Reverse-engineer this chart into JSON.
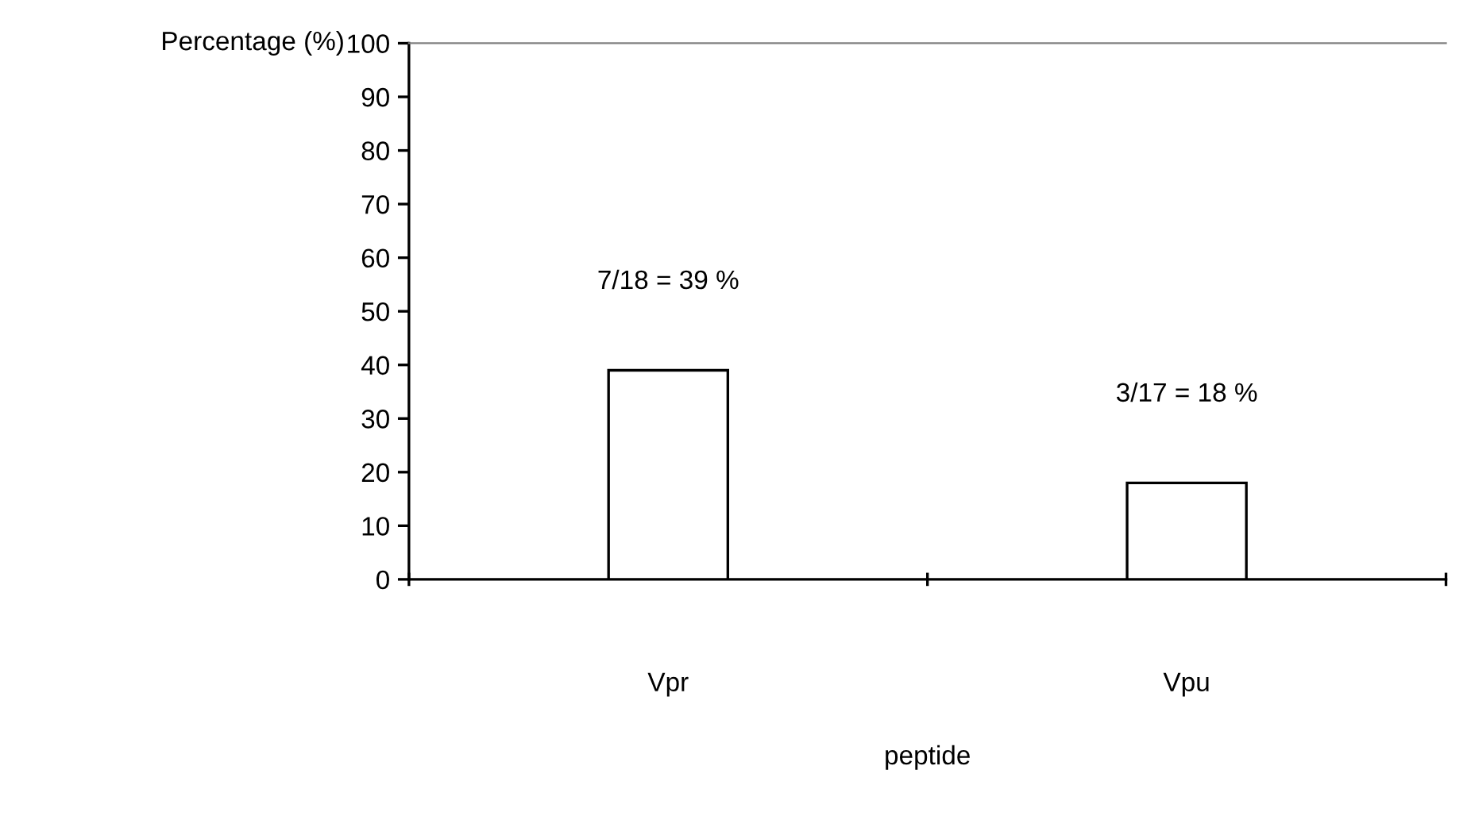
{
  "chart_data": {
    "type": "bar",
    "ylabel": "Percentage (%)",
    "xlabel": "peptide",
    "categories": [
      "Vpr",
      "Vpu"
    ],
    "values": [
      39,
      18
    ],
    "value_labels": [
      "7/18 = 39 %",
      "3/17 = 18 %"
    ],
    "color": "#ffffff",
    "ylim": [
      0,
      100
    ],
    "yticks": [
      0,
      10,
      20,
      30,
      40,
      50,
      60,
      70,
      80,
      90,
      100
    ],
    "legend": false
  }
}
